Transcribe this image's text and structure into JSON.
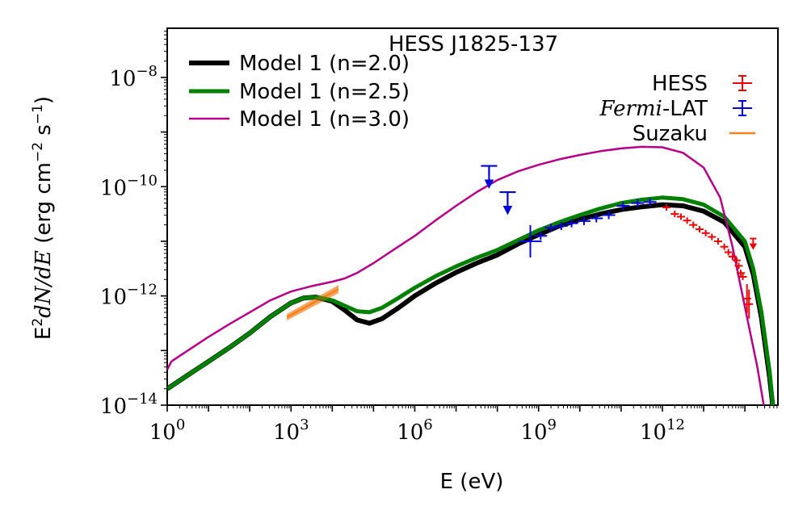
{
  "chart_data": {
    "type": "line",
    "title": "HESS J1825-137",
    "xlabel": "E (eV)",
    "ylabel": {
      "prefix": "E",
      "sup2": "2",
      "math": "dN/dE",
      "units_open": " (erg cm",
      "sup_a": "−2",
      "units_mid": " s",
      "sup_b": "−1",
      "units_close": ")"
    },
    "x_scale": "log",
    "y_scale": "log",
    "xlim_log10": [
      0,
      14.8
    ],
    "ylim_log10": [
      -14,
      -7.1
    ],
    "x_ticks": [
      {
        "base": "10",
        "exp": "0",
        "value_log10": 0
      },
      {
        "base": "10",
        "exp": "3",
        "value_log10": 3
      },
      {
        "base": "10",
        "exp": "6",
        "value_log10": 6
      },
      {
        "base": "10",
        "exp": "9",
        "value_log10": 9
      },
      {
        "base": "10",
        "exp": "12",
        "value_log10": 12
      }
    ],
    "y_ticks": [
      {
        "base": "10",
        "exp": "−8",
        "value_log10": -8
      },
      {
        "base": "10",
        "exp": "−10",
        "value_log10": -10
      },
      {
        "base": "10",
        "exp": "−12",
        "value_log10": -12
      },
      {
        "base": "10",
        "exp": "−14",
        "value_log10": -14
      }
    ],
    "series": [
      {
        "name": "Model 1 (n=2.0)",
        "color": "#000000",
        "width": 6,
        "points_log10": [
          [
            0,
            -13.7
          ],
          [
            0.5,
            -13.45
          ],
          [
            1,
            -13.2
          ],
          [
            1.5,
            -12.95
          ],
          [
            2,
            -12.68
          ],
          [
            2.5,
            -12.38
          ],
          [
            3,
            -12.13
          ],
          [
            3.3,
            -12.04
          ],
          [
            3.6,
            -12.02
          ],
          [
            4,
            -12.1
          ],
          [
            4.3,
            -12.26
          ],
          [
            4.6,
            -12.44
          ],
          [
            4.9,
            -12.5
          ],
          [
            5.2,
            -12.42
          ],
          [
            5.6,
            -12.22
          ],
          [
            6,
            -12.0
          ],
          [
            6.5,
            -11.77
          ],
          [
            7,
            -11.57
          ],
          [
            7.5,
            -11.4
          ],
          [
            8,
            -11.25
          ],
          [
            8.5,
            -11.05
          ],
          [
            9,
            -10.88
          ],
          [
            9.5,
            -10.72
          ],
          [
            10,
            -10.6
          ],
          [
            10.5,
            -10.5
          ],
          [
            11,
            -10.42
          ],
          [
            11.5,
            -10.37
          ],
          [
            12,
            -10.33
          ],
          [
            12.5,
            -10.35
          ],
          [
            13,
            -10.45
          ],
          [
            13.5,
            -10.65
          ],
          [
            14,
            -11.1
          ],
          [
            14.2,
            -11.6
          ],
          [
            14.4,
            -12.4
          ],
          [
            14.6,
            -13.5
          ],
          [
            14.7,
            -14.2
          ]
        ]
      },
      {
        "name": "Model 1 (n=2.5)",
        "color": "#008000",
        "width": 5,
        "points_log10": [
          [
            0,
            -13.7
          ],
          [
            0.5,
            -13.45
          ],
          [
            1,
            -13.2
          ],
          [
            1.5,
            -12.95
          ],
          [
            2,
            -12.68
          ],
          [
            2.5,
            -12.38
          ],
          [
            3,
            -12.13
          ],
          [
            3.3,
            -12.04
          ],
          [
            3.6,
            -12.02
          ],
          [
            4,
            -12.08
          ],
          [
            4.3,
            -12.18
          ],
          [
            4.6,
            -12.28
          ],
          [
            4.9,
            -12.3
          ],
          [
            5.2,
            -12.22
          ],
          [
            5.6,
            -12.04
          ],
          [
            6,
            -11.85
          ],
          [
            6.5,
            -11.64
          ],
          [
            7,
            -11.46
          ],
          [
            7.5,
            -11.3
          ],
          [
            8,
            -11.16
          ],
          [
            8.5,
            -10.98
          ],
          [
            9,
            -10.8
          ],
          [
            9.5,
            -10.65
          ],
          [
            10,
            -10.52
          ],
          [
            10.5,
            -10.4
          ],
          [
            11,
            -10.3
          ],
          [
            11.5,
            -10.24
          ],
          [
            12,
            -10.2
          ],
          [
            12.5,
            -10.23
          ],
          [
            13,
            -10.33
          ],
          [
            13.5,
            -10.55
          ],
          [
            14,
            -11.0
          ],
          [
            14.2,
            -11.5
          ],
          [
            14.4,
            -12.3
          ],
          [
            14.6,
            -13.4
          ],
          [
            14.7,
            -14.2
          ]
        ]
      },
      {
        "name": "Model 1 (n=3.0)",
        "color": "#b5008a",
        "width": 2.5,
        "points_log10": [
          [
            0,
            -13.35
          ],
          [
            0.1,
            -13.2
          ],
          [
            0.3,
            -13.1
          ],
          [
            0.6,
            -12.95
          ],
          [
            1,
            -12.75
          ],
          [
            1.5,
            -12.52
          ],
          [
            2,
            -12.3
          ],
          [
            2.5,
            -12.08
          ],
          [
            3,
            -11.92
          ],
          [
            3.5,
            -11.82
          ],
          [
            4,
            -11.74
          ],
          [
            4.3,
            -11.68
          ],
          [
            4.6,
            -11.58
          ],
          [
            5,
            -11.4
          ],
          [
            5.5,
            -11.15
          ],
          [
            6,
            -10.9
          ],
          [
            6.5,
            -10.62
          ],
          [
            7,
            -10.35
          ],
          [
            7.5,
            -10.1
          ],
          [
            8,
            -9.88
          ],
          [
            8.5,
            -9.72
          ],
          [
            9,
            -9.6
          ],
          [
            9.5,
            -9.5
          ],
          [
            10,
            -9.42
          ],
          [
            10.5,
            -9.35
          ],
          [
            11,
            -9.3
          ],
          [
            11.5,
            -9.27
          ],
          [
            12,
            -9.28
          ],
          [
            12.5,
            -9.38
          ],
          [
            13,
            -9.65
          ],
          [
            13.4,
            -10.2
          ],
          [
            13.7,
            -11.1
          ],
          [
            14,
            -12.2
          ],
          [
            14.3,
            -13.3
          ],
          [
            14.5,
            -14.2
          ]
        ]
      }
    ],
    "hess_points_log10": [
      [
        12.1,
        -10.38
      ],
      [
        12.3,
        -10.5
      ],
      [
        12.45,
        -10.55
      ],
      [
        12.6,
        -10.62
      ],
      [
        12.75,
        -10.7
      ],
      [
        12.9,
        -10.78
      ],
      [
        13.05,
        -10.85
      ],
      [
        13.2,
        -10.92
      ],
      [
        13.35,
        -11.0
      ],
      [
        13.5,
        -11.1
      ],
      [
        13.6,
        -11.2
      ],
      [
        13.7,
        -11.28
      ],
      [
        13.8,
        -11.35
      ],
      [
        13.85,
        -11.45
      ],
      [
        13.9,
        -11.58
      ],
      [
        13.95,
        -11.65
      ],
      [
        14.05,
        -12.05
      ],
      [
        14.1,
        -12.15
      ]
    ],
    "hess_upper_limit_log10": [
      [
        14.2,
        -10.95
      ]
    ],
    "fermi_points_log10": [
      [
        8.8,
        -11.0
      ],
      [
        9.05,
        -10.9
      ],
      [
        9.3,
        -10.75
      ],
      [
        9.55,
        -10.72
      ],
      [
        9.8,
        -10.67
      ],
      [
        10.1,
        -10.63
      ],
      [
        10.4,
        -10.58
      ],
      [
        10.7,
        -10.52
      ],
      [
        11.05,
        -10.35
      ],
      [
        11.4,
        -10.3
      ],
      [
        11.7,
        -10.28
      ]
    ],
    "fermi_upper_limits_log10": [
      [
        7.8,
        -9.62
      ],
      [
        8.25,
        -10.1
      ]
    ],
    "suzaku_band_log10": {
      "x": [
        2.9,
        4.15
      ],
      "y_low": [
        -12.45,
        -11.95
      ],
      "y_high": [
        -12.33,
        -11.8
      ]
    },
    "legend": {
      "models": [
        "Model 1 (n=2.0)",
        "Model 1 (n=2.5)",
        "Model 1 (n=3.0)"
      ],
      "hess": "HESS",
      "fermi_italic": "Fermi",
      "fermi_rest": "-LAT",
      "suzaku": "Suzaku"
    },
    "colors": {
      "hess": "#ee0000",
      "fermi": "#0000dd",
      "suzaku": "#f5821f"
    }
  }
}
